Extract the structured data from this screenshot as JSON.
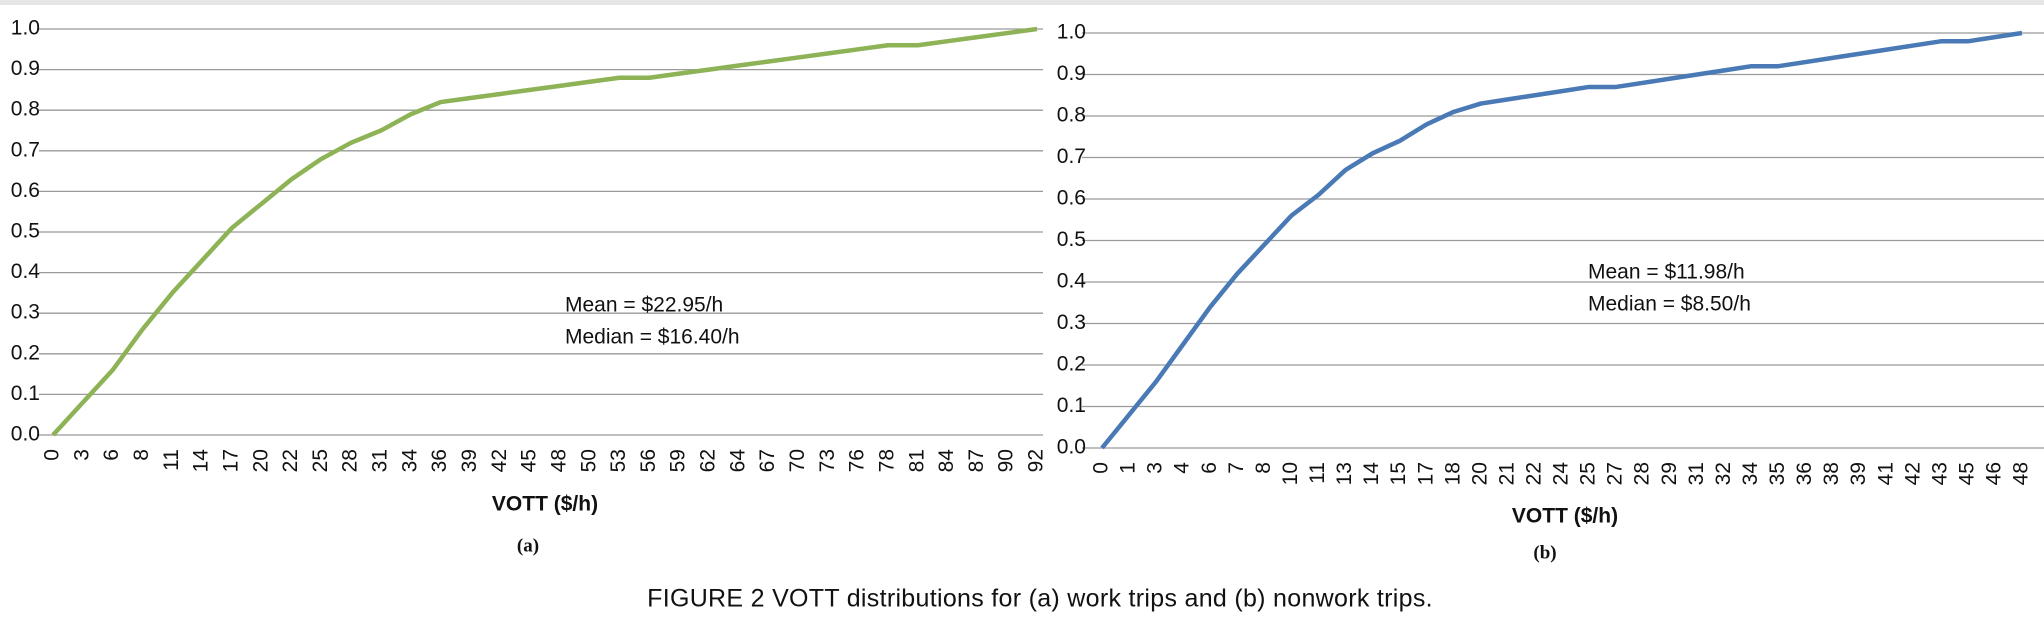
{
  "chart_data": [
    {
      "type": "line",
      "subtitle": "(a)",
      "x_label": "VOTT ($/h)",
      "annotations": [
        "Mean = $22.95/h",
        "Median = $16.40/h"
      ],
      "categories": [
        "0",
        "3",
        "6",
        "8",
        "11",
        "14",
        "17",
        "20",
        "22",
        "25",
        "28",
        "31",
        "34",
        "36",
        "39",
        "42",
        "45",
        "48",
        "50",
        "53",
        "56",
        "59",
        "62",
        "64",
        "67",
        "70",
        "73",
        "76",
        "78",
        "81",
        "84",
        "87",
        "90",
        "92"
      ],
      "series": [
        {
          "color": "#8db356",
          "values": [
            0,
            0.08,
            0.16,
            0.26,
            0.35,
            0.43,
            0.51,
            0.57,
            0.63,
            0.68,
            0.72,
            0.75,
            0.79,
            0.82,
            0.83,
            0.84,
            0.85,
            0.86,
            0.87,
            0.88,
            0.88,
            0.89,
            0.9,
            0.91,
            0.92,
            0.93,
            0.94,
            0.95,
            0.96,
            0.96,
            0.97,
            0.98,
            0.99,
            1.0
          ]
        }
      ],
      "ylim": [
        0,
        1
      ],
      "yticks": [
        {
          "value": 0,
          "label": "0.0"
        },
        0.1,
        0.2,
        0.3,
        0.4,
        0.5,
        0.6,
        0.7,
        0.8,
        0.9,
        {
          "value": 1,
          "label": "1.0"
        }
      ],
      "grid": true
    },
    {
      "type": "line",
      "subtitle": "(b)",
      "x_label": "VOTT ($/h)",
      "annotations": [
        "Mean = $11.98/h",
        "Median = $8.50/h"
      ],
      "categories": [
        "0",
        "1",
        "3",
        "4",
        "6",
        "7",
        "8",
        "10",
        "11",
        "13",
        "14",
        "15",
        "17",
        "18",
        "20",
        "21",
        "22",
        "24",
        "25",
        "27",
        "28",
        "29",
        "31",
        "32",
        "34",
        "35",
        "36",
        "38",
        "39",
        "41",
        "42",
        "43",
        "45",
        "46",
        "48"
      ],
      "series": [
        {
          "color": "#4a7ab5",
          "values": [
            0,
            0.08,
            0.16,
            0.25,
            0.34,
            0.42,
            0.49,
            0.56,
            0.61,
            0.67,
            0.71,
            0.74,
            0.78,
            0.81,
            0.83,
            0.84,
            0.85,
            0.86,
            0.87,
            0.87,
            0.88,
            0.89,
            0.9,
            0.91,
            0.92,
            0.92,
            0.93,
            0.94,
            0.95,
            0.96,
            0.97,
            0.98,
            0.98,
            0.99,
            1.0
          ]
        }
      ],
      "ylim": [
        0,
        1
      ],
      "yticks": [
        {
          "value": 0,
          "label": "0.0"
        },
        0.1,
        0.2,
        0.3,
        0.4,
        0.5,
        0.6,
        0.7,
        0.8,
        0.9,
        {
          "value": 1,
          "label": "1.0"
        }
      ],
      "grid": true
    }
  ],
  "caption": "FIGURE 2    VOTT distributions for (a) work trips and (b) nonwork trips."
}
